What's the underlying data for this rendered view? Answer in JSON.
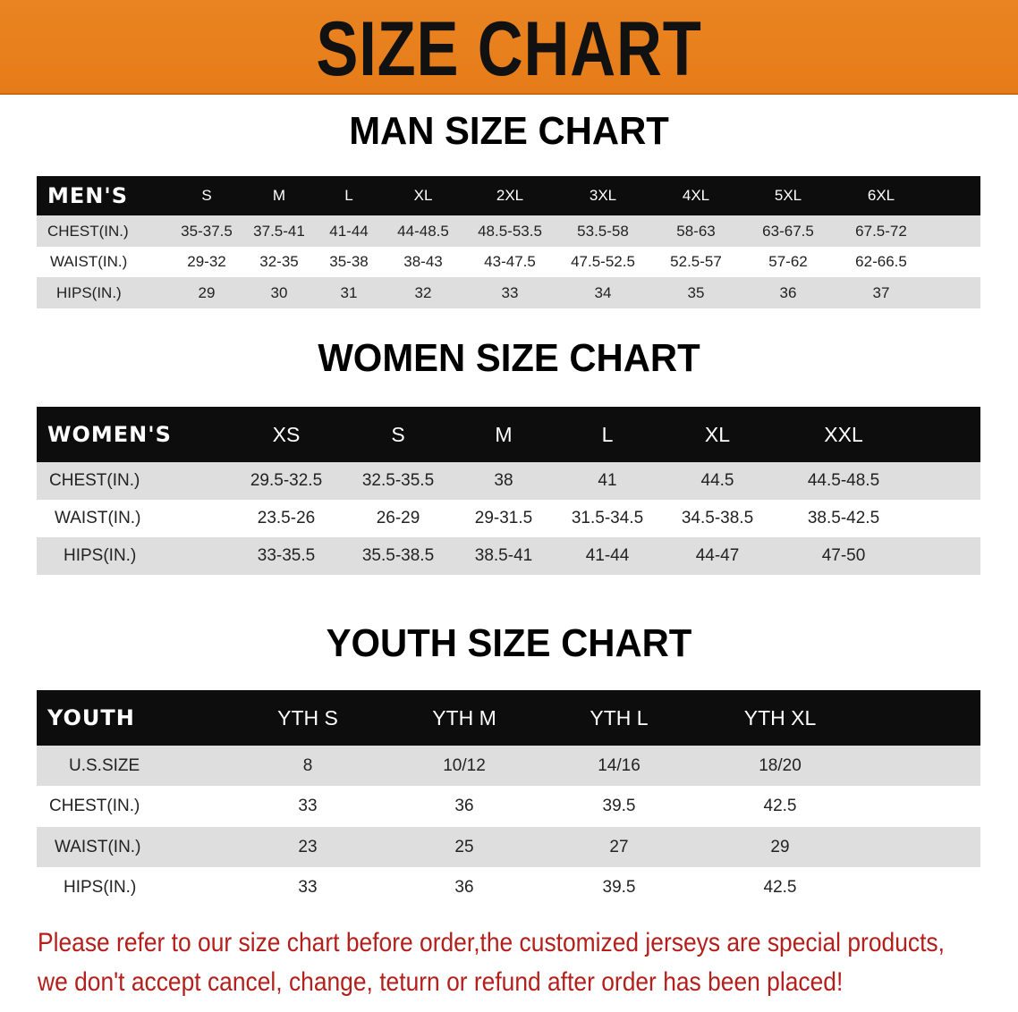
{
  "banner": {
    "title": "SIZE CHART",
    "color": "#e8801f"
  },
  "men": {
    "title": "MAN SIZE CHART",
    "header": [
      "MEN'S",
      "S",
      "M",
      "L",
      "XL",
      "2XL",
      "3XL",
      "4XL",
      "5XL",
      "6XL"
    ],
    "rows": [
      [
        "CHEST(IN.)",
        "35-37.5",
        "37.5-41",
        "41-44",
        "44-48.5",
        "48.5-53.5",
        "53.5-58",
        "58-63",
        "63-67.5",
        "67.5-72"
      ],
      [
        "WAIST(IN.)",
        "29-32",
        "32-35",
        "35-38",
        "38-43",
        "43-47.5",
        "47.5-52.5",
        "52.5-57",
        "57-62",
        "62-66.5"
      ],
      [
        "HIPS(IN.)",
        "29",
        "30",
        "31",
        "32",
        "33",
        "34",
        "35",
        "36",
        "37"
      ]
    ]
  },
  "women": {
    "title": "WOMEN SIZE CHART",
    "header": [
      "WOMEN'S",
      "XS",
      "S",
      "M",
      "L",
      "XL",
      "XXL"
    ],
    "rows": [
      [
        "CHEST(IN.)",
        "29.5-32.5",
        "32.5-35.5",
        "38",
        "41",
        "44.5",
        "44.5-48.5"
      ],
      [
        "WAIST(IN.)",
        "23.5-26",
        "26-29",
        "29-31.5",
        "31.5-34.5",
        "34.5-38.5",
        "38.5-42.5"
      ],
      [
        "HIPS(IN.)",
        "33-35.5",
        "35.5-38.5",
        "38.5-41",
        "41-44",
        "44-47",
        "47-50"
      ]
    ]
  },
  "youth": {
    "title": "YOUTH SIZE CHART",
    "header": [
      "YOUTH",
      "YTH S",
      "YTH M",
      "YTH L",
      "YTH XL"
    ],
    "rows": [
      [
        "U.S.SIZE",
        "8",
        "10/12",
        "14/16",
        "18/20"
      ],
      [
        "CHEST(IN.)",
        "33",
        "36",
        "39.5",
        "42.5"
      ],
      [
        "WAIST(IN.)",
        "23",
        "25",
        "27",
        "29"
      ],
      [
        "HIPS(IN.)",
        "33",
        "36",
        "39.5",
        "42.5"
      ]
    ]
  },
  "note": {
    "line1": "Please refer to our size chart before order,the customized jerseys are special products,",
    "line2": "we don't accept cancel, change, teturn or refund after order has been placed!",
    "color": "#b3201c"
  }
}
